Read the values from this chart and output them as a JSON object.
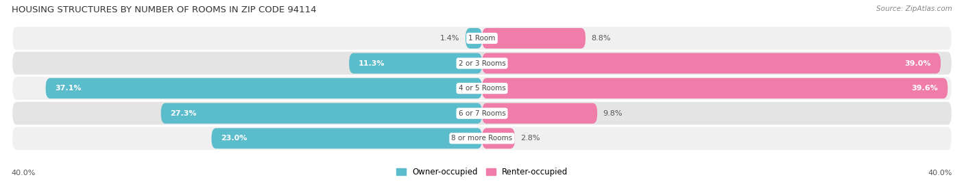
{
  "title": "HOUSING STRUCTURES BY NUMBER OF ROOMS IN ZIP CODE 94114",
  "source": "Source: ZipAtlas.com",
  "categories": [
    "1 Room",
    "2 or 3 Rooms",
    "4 or 5 Rooms",
    "6 or 7 Rooms",
    "8 or more Rooms"
  ],
  "owner_values": [
    1.4,
    11.3,
    37.1,
    27.3,
    23.0
  ],
  "renter_values": [
    8.8,
    39.0,
    39.6,
    9.8,
    2.8
  ],
  "owner_color": "#5bbccc",
  "renter_color": "#f07caa",
  "row_bg_colors": [
    "#f0f0f0",
    "#e4e4e4"
  ],
  "xlim": 40.0,
  "bar_height": 0.82,
  "figsize": [
    14.06,
    2.69
  ],
  "dpi": 100,
  "owner_label_white_threshold": 8.0,
  "renter_label_white_threshold": 15.0
}
